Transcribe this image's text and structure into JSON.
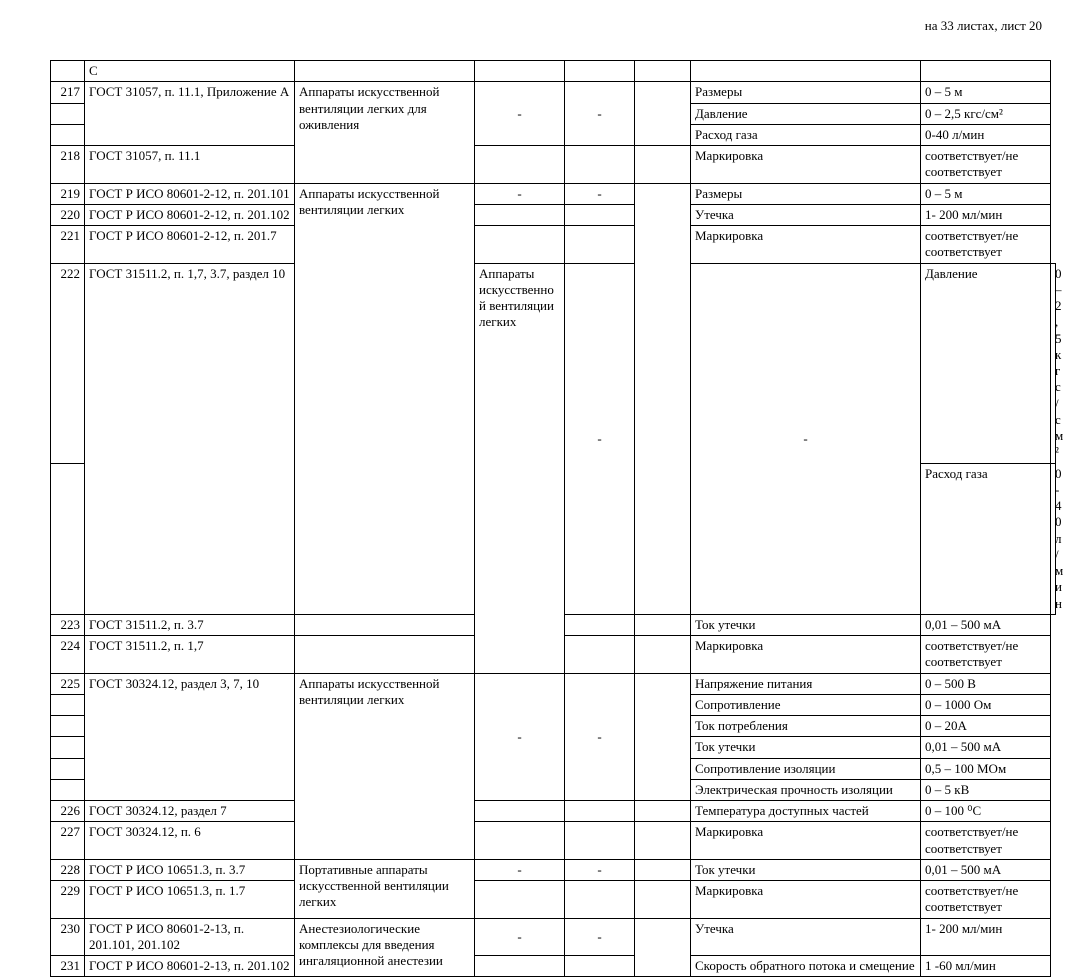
{
  "page": {
    "header_note": "на 33 листах, лист 20"
  },
  "rows": [
    {
      "num": "",
      "std": "С",
      "desc": "",
      "c3": "",
      "c4": "",
      "c5": "",
      "param": "",
      "range": ""
    },
    {
      "num": "217",
      "std": "ГОСТ 31057, п. 11.1, Приложение А",
      "desc": "Аппараты искусственной вентиляции легких для оживления",
      "c3": "-",
      "c4": "-",
      "c5": "",
      "param": "Размеры",
      "range": "0 – 5 м",
      "std_rowspan": 3,
      "desc_rowspan": 4,
      "c3_rowspan": 3,
      "c4_rowspan": 3,
      "c5_rowspan": 3
    },
    {
      "num": "",
      "param": "Давление",
      "range": "0 – 2,5 кгс/см²"
    },
    {
      "num": "",
      "param": "Расход газа",
      "range": "0-40 л/мин"
    },
    {
      "num": "218",
      "std": "ГОСТ 31057, п. 11.1",
      "c3": "",
      "c4": "",
      "c5": "",
      "param": "Маркировка",
      "range": "соответствует/не соответствует"
    },
    {
      "num": "219",
      "std": "ГОСТ Р ИСО 80601-2-12, п. 201.101",
      "desc": "Аппараты искусственной вентиляции легких",
      "c3": "-",
      "c4": "-",
      "c5": "",
      "param": "Размеры",
      "range": "0 – 5 м",
      "desc_rowspan": 5,
      "c5_rowspan": 5
    },
    {
      "num": "220",
      "std": "ГОСТ Р ИСО 80601-2-12, п. 201.102",
      "c3": "",
      "c4": "",
      "param": "Утечка",
      "range": "1- 200 мл/мин"
    },
    {
      "num": "221",
      "std": "ГОСТ Р ИСО 80601-2-12, п. 201.7",
      "c3": "",
      "c4": "",
      "param": "Маркировка",
      "range": "соответствует/не соответствует"
    },
    {
      "num": "222",
      "std": "ГОСТ 31511.2, п. 1,7, 3.7, раздел 10",
      "desc": "Аппараты искусственной вентиляции легких",
      "c3": "-",
      "c4": "-",
      "param": "Давление",
      "range": "0 – 2,5 кгс/см²",
      "std_rowspan": 2,
      "desc_rowspan": 4,
      "c3_rowspan": 2,
      "c4_rowspan": 2
    },
    {
      "num": "",
      "param": "Расход газа",
      "range": "0-40 л/мин"
    },
    {
      "num": "223",
      "std": "ГОСТ 31511.2, п. 3.7",
      "c3": "",
      "c4": "",
      "c5": "",
      "param": "Ток утечки",
      "range": "0,01 – 500 мА"
    },
    {
      "num": "224",
      "std": "ГОСТ 31511.2, п. 1,7",
      "c3": "",
      "c4": "",
      "c5": "",
      "param": "Маркировка",
      "range": "соответствует/не соответствует"
    },
    {
      "num": "225",
      "std": "ГОСТ 30324.12, раздел 3, 7, 10",
      "desc": "Аппараты искусственной вентиляции легких",
      "c3": "-",
      "c4": "-",
      "c5": "",
      "param": "Напряжение питания",
      "range": "0 – 500 В",
      "std_rowspan": 6,
      "desc_rowspan": 8,
      "c3_rowspan": 6,
      "c4_rowspan": 6,
      "c5_rowspan": 6
    },
    {
      "num": "",
      "param": "Сопротивление",
      "range": "0 – 1000 Ом"
    },
    {
      "num": "",
      "param": "Ток потребления",
      "range": "0 – 20А"
    },
    {
      "num": "",
      "param": "Ток утечки",
      "range": "0,01 – 500 мА"
    },
    {
      "num": "",
      "param": "Сопротивление изоляции",
      "range": "0,5 – 100 МОм"
    },
    {
      "num": "",
      "param": "Электрическая прочность изоляции",
      "range": "0 – 5 кВ"
    },
    {
      "num": "226",
      "std": "ГОСТ 30324.12, раздел 7",
      "c3": "",
      "c4": "",
      "c5": "",
      "param": "Температура доступных частей",
      "range": "0 – 100 ⁰С"
    },
    {
      "num": "227",
      "std": "ГОСТ 30324.12, п. 6",
      "c3": "",
      "c4": "",
      "c5": "",
      "param": "Маркировка",
      "range": "соответствует/не соответствует"
    },
    {
      "num": "228",
      "std": "ГОСТ Р ИСО 10651.3, п. 3.7",
      "desc": "Портативные аппараты искусственной вентиляции легких",
      "c3": "-",
      "c4": "-",
      "c5": "",
      "param": "Ток утечки",
      "range": "0,01 – 500 мА",
      "desc_rowspan": 2
    },
    {
      "num": "229",
      "std": "ГОСТ Р ИСО 10651.3, п. 1.7",
      "c3": "",
      "c4": "",
      "c5": "",
      "param": "Маркировка",
      "range": "соответствует/не соответствует"
    },
    {
      "num": "230",
      "std": "ГОСТ Р ИСО 80601-2-13, п. 201.101, 201.102",
      "desc": "Анестезиологические комплексы для введения ингаляционной анестезии",
      "c3": "-",
      "c4": "-",
      "c5": "",
      "param": "Утечка",
      "range": "1- 200 мл/мин",
      "desc_rowspan": 2,
      "c5_rowspan": 2
    },
    {
      "num": "231",
      "std": "ГОСТ Р ИСО 80601-2-13, п. 201.102",
      "c3": "",
      "c4": "",
      "param": "Скорость обратного потока и смещение",
      "range": "1 -60 мл/мин"
    }
  ]
}
